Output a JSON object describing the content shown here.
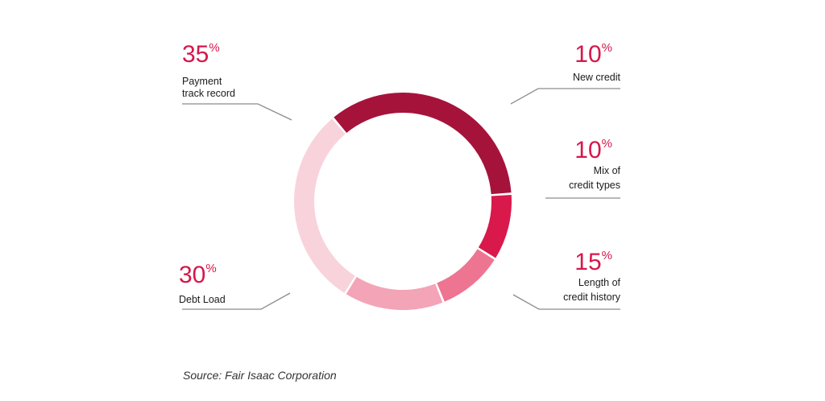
{
  "chart_data": {
    "type": "pie",
    "style": "donut",
    "title": "",
    "slices": [
      {
        "label": "Payment track record",
        "label_lines": [
          "Payment",
          "track record"
        ],
        "value": 35,
        "value_text": "35",
        "color": "#a5133b"
      },
      {
        "label": "New credit",
        "label_lines": [
          "New credit"
        ],
        "value": 10,
        "value_text": "10",
        "color": "#d9194c"
      },
      {
        "label": "Mix of credit types",
        "label_lines": [
          "Mix of",
          "credit types"
        ],
        "value": 10,
        "value_text": "10",
        "color": "#ee7592"
      },
      {
        "label": "Length of credit history",
        "label_lines": [
          "Length of",
          "credit history"
        ],
        "value": 15,
        "value_text": "15",
        "color": "#f3a4b7"
      },
      {
        "label": "Debt Load",
        "label_lines": [
          "Debt Load"
        ],
        "value": 30,
        "value_text": "30",
        "color": "#f8d3dc"
      }
    ],
    "percent_symbol": "%"
  },
  "source": "Source: Fair Isaac Corporation"
}
